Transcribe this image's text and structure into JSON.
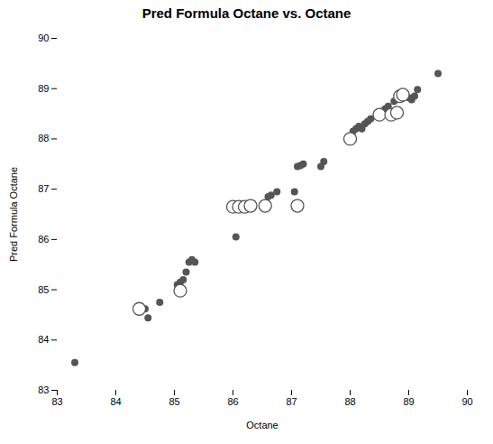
{
  "chart_data": {
    "type": "scatter",
    "title": "Pred Formula Octane vs. Octane",
    "xlabel": "Octane",
    "ylabel": "Pred Formula Octane",
    "xlim": [
      83,
      90
    ],
    "ylim": [
      83,
      90
    ],
    "xticks": [
      83,
      84,
      85,
      86,
      87,
      88,
      89,
      90
    ],
    "yticks": [
      83,
      84,
      85,
      86,
      87,
      88,
      89,
      90
    ],
    "grid": false,
    "series": [
      {
        "marker": "filled",
        "color": "#555555",
        "x": [
          83.3,
          84.4,
          84.5,
          84.55,
          84.75,
          85.05,
          85.1,
          85.15,
          85.2,
          85.25,
          85.3,
          85.35,
          86.05,
          86.6,
          86.65,
          86.75,
          87.05,
          87.1,
          87.15,
          87.2,
          87.5,
          87.55,
          88.05,
          88.1,
          88.15,
          88.2,
          88.25,
          88.3,
          88.35,
          88.45,
          88.5,
          88.55,
          88.6,
          88.65,
          88.75,
          88.8,
          88.85,
          88.9,
          88.95,
          89.0,
          89.05,
          89.1,
          89.15,
          89.5
        ],
        "values": [
          83.55,
          84.65,
          84.62,
          84.44,
          84.75,
          85.1,
          85.15,
          85.2,
          85.35,
          85.55,
          85.6,
          85.55,
          86.05,
          86.85,
          86.88,
          86.95,
          86.95,
          87.45,
          87.47,
          87.5,
          87.45,
          87.55,
          88.15,
          88.2,
          88.25,
          88.2,
          88.3,
          88.35,
          88.4,
          88.45,
          88.5,
          88.55,
          88.6,
          88.65,
          88.75,
          88.8,
          88.85,
          88.85,
          88.9,
          88.82,
          88.78,
          88.85,
          88.98,
          89.3
        ]
      },
      {
        "marker": "open",
        "color": "#555555",
        "x": [
          84.4,
          85.1,
          86.0,
          86.1,
          86.2,
          86.3,
          86.55,
          87.1,
          88.0,
          88.5,
          88.7,
          88.8,
          88.85,
          88.9
        ],
        "values": [
          84.62,
          84.98,
          86.65,
          86.65,
          86.65,
          86.67,
          86.67,
          86.67,
          88.0,
          88.48,
          88.48,
          88.52,
          88.85,
          88.88
        ]
      }
    ]
  }
}
